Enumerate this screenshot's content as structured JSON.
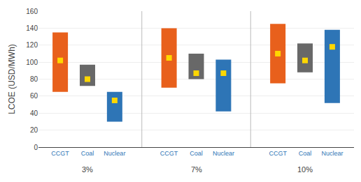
{
  "chart_data": {
    "type": "bar",
    "ylabel": "LCOE (USD/MWh)",
    "categories": [
      "3%",
      "7%",
      "10%"
    ],
    "series": [
      {
        "name": "CCGT",
        "color": "#E8601C",
        "low": [
          65,
          70,
          75
        ],
        "high": [
          135,
          140,
          145
        ],
        "dot": [
          102,
          105,
          110
        ]
      },
      {
        "name": "Coal",
        "color": "#686868",
        "low": [
          72,
          80,
          88
        ],
        "high": [
          97,
          110,
          122
        ],
        "dot": [
          80,
          87,
          102
        ]
      },
      {
        "name": "Nuclear",
        "color": "#2E75B6",
        "low": [
          30,
          42,
          52
        ],
        "high": [
          65,
          103,
          138
        ],
        "dot": [
          55,
          87,
          118
        ]
      }
    ],
    "dots": {
      "color": "#FFD700",
      "marker": "square"
    },
    "tick_label_color": "#2E75B6",
    "ylim": [
      0,
      160
    ],
    "yticks": [
      0,
      20,
      40,
      60,
      80,
      100,
      120,
      140,
      160
    ],
    "grid": true
  }
}
